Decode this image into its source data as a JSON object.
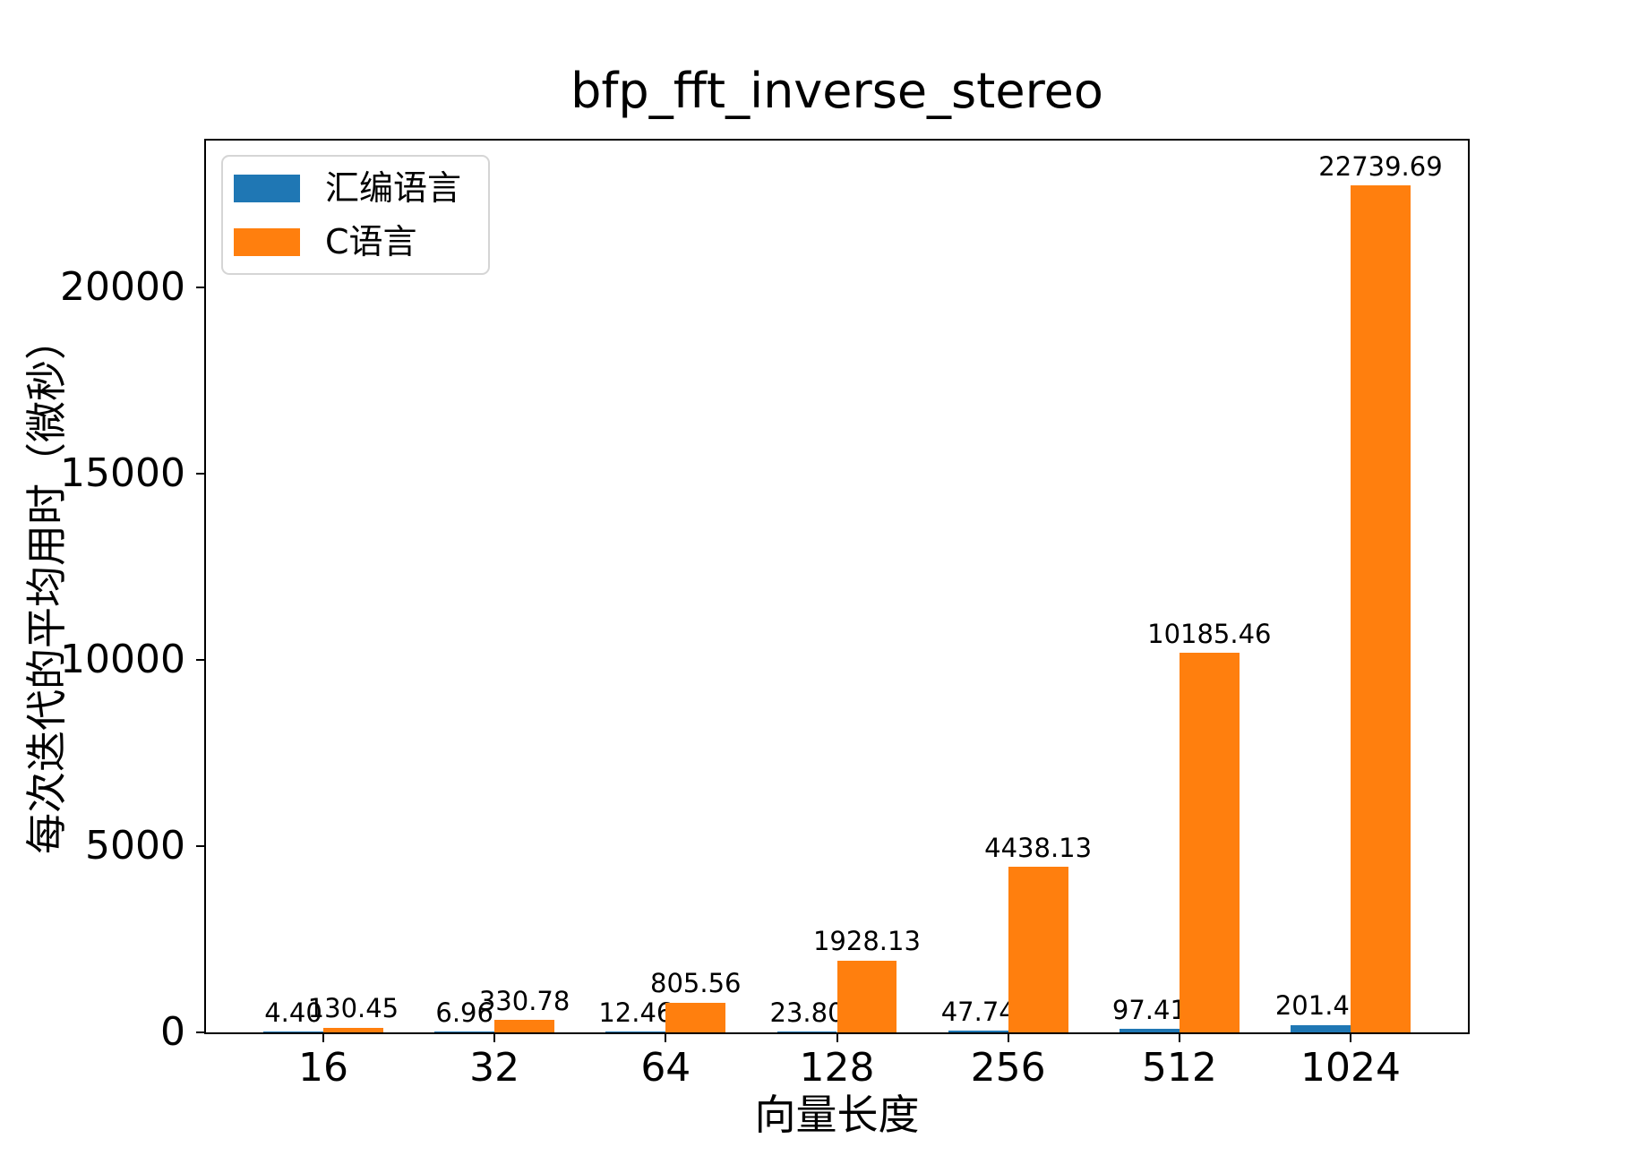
{
  "figure": {
    "background": "#ffffff"
  },
  "chart_data": {
    "type": "bar",
    "title": "bfp_fft_inverse_stereo",
    "xlabel": "向量长度",
    "ylabel": "每次迭代的平均用时（微秒）",
    "categories": [
      "16",
      "32",
      "64",
      "128",
      "256",
      "512",
      "1024"
    ],
    "series": [
      {
        "name": "汇编语言",
        "color": "#1f77b4",
        "values": [
          4.4,
          6.96,
          12.46,
          23.8,
          47.74,
          97.41,
          201.47
        ],
        "value_labels": [
          "4.40",
          "6.96",
          "12.46",
          "23.80",
          "47.74",
          "97.41",
          "201.47"
        ]
      },
      {
        "name": "C语言",
        "color": "#ff7f0e",
        "values": [
          130.45,
          330.78,
          805.56,
          1928.13,
          4438.13,
          10185.46,
          22739.69
        ],
        "value_labels": [
          "130.45",
          "330.78",
          "805.56",
          "1928.13",
          "4438.13",
          "10185.46",
          "22739.69"
        ]
      }
    ],
    "yticks": [
      0,
      5000,
      10000,
      15000,
      20000
    ],
    "ylim": [
      0,
      23950
    ],
    "x_total_units": 7.37,
    "x_first_center_units": 0.685,
    "bar_width_units": 0.35,
    "legend_position": "upper left",
    "grid": false,
    "axis_color": "#000000",
    "text_color": "#000000"
  }
}
